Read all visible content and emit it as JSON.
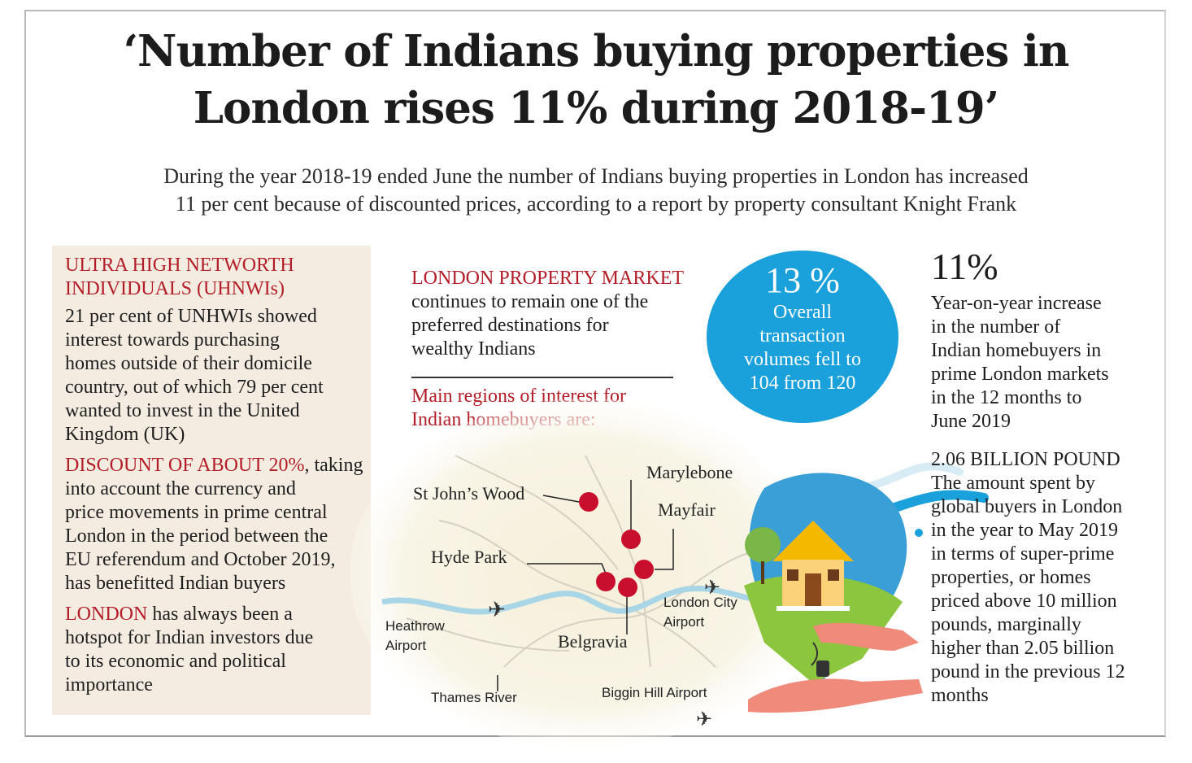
{
  "header": {
    "title_line1": "‘Number of Indians buying properties in",
    "title_line2": "London rises 11% during 2018-19’",
    "subtitle_line1": "During the year 2018-19 ended June the number of Indians buying properties in London has increased",
    "subtitle_line2": "11 per cent because of discounted prices, according to a report by property consultant Knight Frank"
  },
  "left": {
    "uhnwi_head_1": "ULTRA HIGH NETWORTH",
    "uhnwi_head_2": "INDIVIDUALS (UHNWIs)",
    "uhnwi_lines": [
      "21 per cent of UNHWIs showed",
      "interest towards purchasing",
      "homes outside of their domicile",
      "country, out of which 79 per cent",
      "wanted to invest in the United",
      "Kingdom (UK)"
    ],
    "discount_head": "DISCOUNT OF ABOUT 20%",
    "discount_first_tail": ", taking",
    "discount_lines": [
      "into account the currency and",
      "price movements in prime central",
      "London in the period between the",
      "EU referendum and October 2019,",
      "has benefitted Indian buyers"
    ],
    "london_head": "LONDON",
    "london_first_tail": " has always been a",
    "london_lines": [
      "hotspot for Indian investors due",
      "to its economic and political",
      "importance"
    ]
  },
  "middle": {
    "market_head": "LONDON PROPERTY MARKET",
    "market_lines": [
      "continues to remain one of the",
      "preferred destinations for",
      "wealthy Indians"
    ],
    "regions_line1": "Main regions of interest for",
    "regions_line2": "Indian homebuyers are:"
  },
  "circle": {
    "value": "13 %",
    "lines": [
      "Overall",
      "transaction",
      "volumes fell to",
      "104 from 120"
    ]
  },
  "map": {
    "regions": [
      "St John’s Wood",
      "Marylebone",
      "Mayfair",
      "Hyde Park",
      "Belgravia"
    ],
    "heathrow_1": "Heathrow",
    "heathrow_2": "Airport",
    "london_city_1": "London City",
    "london_city_2": "Airport",
    "thames": "Thames River",
    "biggin": "Biggin Hill Airport",
    "pin_color": "#c8102e",
    "river_color": "#a9d6e6"
  },
  "right": {
    "stat_value": "11%",
    "stat_lines": [
      "Year-on-year increase",
      "in the number of",
      "Indian homebuyers in",
      "prime London markets",
      "in the 12 months to",
      "June 2019"
    ],
    "billion_head": "2.06 BILLION POUND",
    "billion_lines": [
      "The amount spent by",
      "global buyers in London",
      "in the year to May 2019",
      "in terms of super-prime",
      "properties, or homes",
      "priced above 10 million",
      "pounds, marginally",
      "higher than 2.05 billion",
      "pound in the previous 12",
      "months"
    ]
  },
  "colors": {
    "accent_red": "#b21d27",
    "circle_blue": "#1aa0db",
    "panel_beige": "#f4ece0"
  }
}
